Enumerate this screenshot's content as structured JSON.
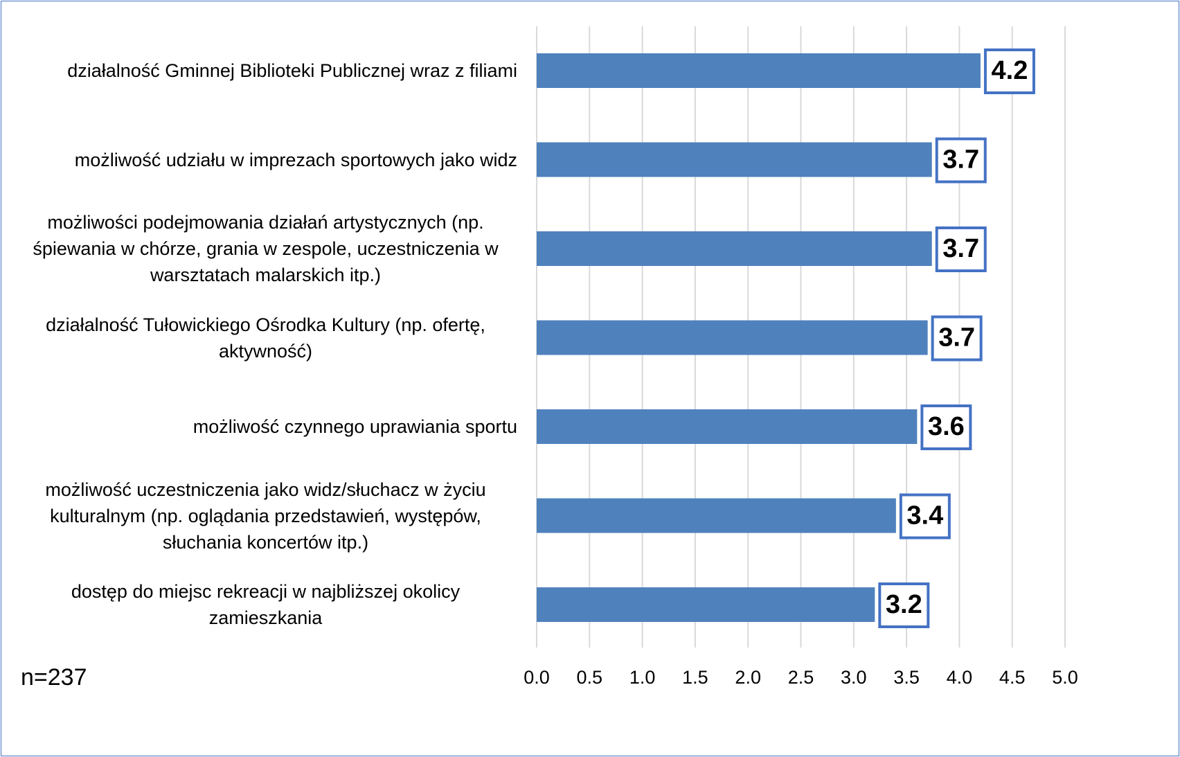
{
  "chart_data": {
    "type": "bar",
    "orientation": "horizontal",
    "categories": [
      "działalność Gminnej Biblioteki Publicznej wraz z filiami",
      "możliwość udziału w imprezach sportowych jako widz",
      "możliwości podejmowania działań artystycznych (np. śpiewania w chórze, grania w zespole, uczestniczenia w warsztatach malarskich itp.)",
      "działalność Tułowickiego Ośrodka Kultury (np. ofertę, aktywność)",
      "możliwość czynnego uprawiania sportu",
      "możliwość uczestniczenia jako widz/słuchacz w życiu kulturalnym (np. oglądania przedstawień, występów, słuchania koncertów itp.)",
      "dostęp do miejsc rekreacji w najbliższej okolicy zamieszkania"
    ],
    "values": [
      4.2,
      3.74,
      3.74,
      3.7,
      3.6,
      3.4,
      3.2
    ],
    "value_labels": [
      "4.2",
      "3.7",
      "3.7",
      "3.7",
      "3.6",
      "3.4",
      "3.2"
    ],
    "color": "#4f81bd",
    "xlim": [
      0,
      5
    ],
    "xticks": [
      {
        "value": 0,
        "label": "0.0"
      },
      0.5,
      {
        "value": 1,
        "label": "1.0"
      },
      1.5,
      {
        "value": 2,
        "label": "2.0"
      },
      2.5,
      {
        "value": 3,
        "label": "3.0"
      },
      3.5,
      {
        "value": 4,
        "label": "4.0"
      },
      4.5,
      {
        "value": 5,
        "label": "5.0"
      }
    ],
    "grid": true,
    "note": "n=237"
  }
}
